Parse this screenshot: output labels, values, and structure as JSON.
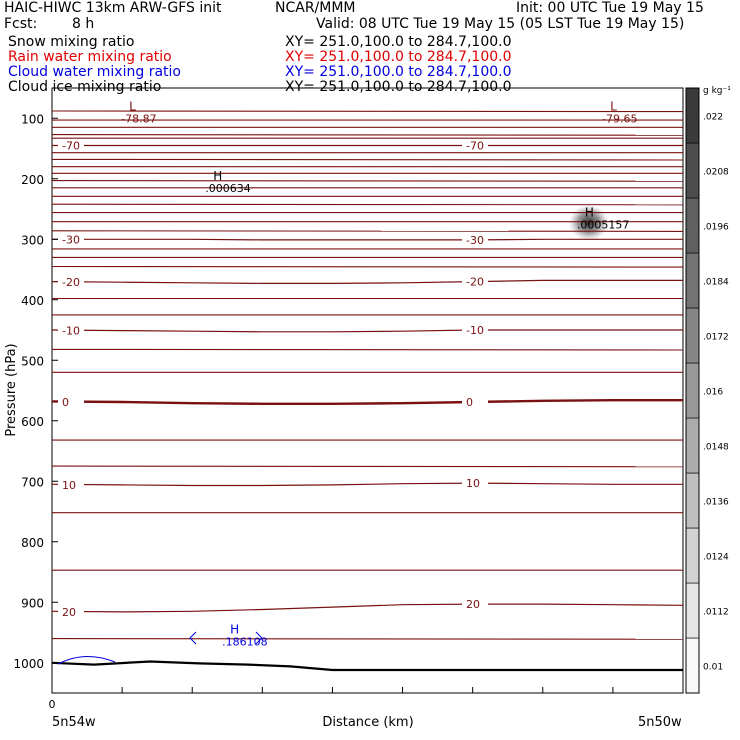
{
  "header": {
    "model": "HAIC-HIWC 13km ARW-GFS init",
    "org": "NCAR/MMM",
    "init": "Init: 00 UTC Tue 19 May 15",
    "fcst_label": "Fcst:",
    "fcst_value": "8 h",
    "valid": "Valid: 08 UTC Tue 19 May 15 (05 LST Tue 19 May 15)"
  },
  "fields": [
    {
      "name": "Snow mixing ratio",
      "xy": "XY= 251.0,100.0 to 284.7,100.0",
      "color": "#000000"
    },
    {
      "name": "Rain water mixing ratio",
      "xy": "XY= 251.0,100.0 to 284.7,100.0",
      "color": "#e00000"
    },
    {
      "name": "Cloud water mixing ratio",
      "xy": "XY= 251.0,100.0 to 284.7,100.0",
      "color": "#0000e0"
    },
    {
      "name": "Cloud ice mixing ratio",
      "xy": "XY= 251.0,100.0 to 284.7,100.0",
      "color": "#000000"
    }
  ],
  "chart_data": {
    "type": "cross-section contour",
    "xlabel": "Distance (km)",
    "ylabel": "Pressure (hPa)",
    "x_ticks": [
      {
        "x": 0,
        "label": "0"
      }
    ],
    "x_end_labels": [
      "5n54w",
      "5n50w"
    ],
    "x_range": [
      0,
      450
    ],
    "y_range": [
      1050,
      50
    ],
    "y_scale": "linear",
    "y_ticks": [
      100,
      200,
      300,
      400,
      500,
      600,
      700,
      800,
      900,
      1000
    ],
    "colorbar": {
      "unit": "g kg⁻¹",
      "ticks": [
        "0.01",
        ".0112",
        ".0124",
        ".0136",
        ".0148",
        ".016",
        ".0172",
        ".0184",
        ".0196",
        ".0208",
        ".022"
      ]
    },
    "temperature_contour_color": "#7a1010",
    "temperature_contours": [
      {
        "value": -70,
        "label": "-70",
        "p": [
          145,
          145,
          145,
          145,
          145,
          145,
          145,
          145,
          145,
          145
        ]
      },
      {
        "value": -30,
        "label": "-30",
        "p": [
          300,
          300,
          300,
          301,
          301,
          301,
          301,
          300,
          300,
          300
        ]
      },
      {
        "value": -20,
        "label": "-20",
        "p": [
          370,
          371,
          372,
          373,
          373,
          372,
          370,
          368,
          368,
          368
        ]
      },
      {
        "value": -10,
        "label": "-10",
        "p": [
          450,
          451,
          452,
          453,
          453,
          452,
          450,
          450,
          450,
          450
        ]
      },
      {
        "value": 0,
        "label": "0",
        "p": [
          568,
          569,
          571,
          572,
          572,
          571,
          569,
          567,
          566,
          566
        ]
      },
      {
        "value": 10,
        "label": "10",
        "p": [
          705,
          706,
          707,
          707,
          706,
          704,
          703,
          704,
          705,
          705
        ]
      },
      {
        "value": 20,
        "label": "20",
        "p": [
          915,
          916,
          915,
          912,
          908,
          904,
          903,
          903,
          904,
          905
        ]
      }
    ],
    "extrema": [
      {
        "kind": "L",
        "value": "-78.87",
        "x": 55,
        "p": 100,
        "color": "#7a1010"
      },
      {
        "kind": "L",
        "value": "-79.65",
        "x": 398,
        "p": 100,
        "color": "#7a1010"
      },
      {
        "kind": "H",
        "value": ".000634",
        "x": 115,
        "p": 215,
        "color": "#000000"
      },
      {
        "kind": "H",
        "value": ".0005157",
        "x": 380,
        "p": 276,
        "color": "#000000"
      },
      {
        "kind": "H",
        "value": ".186108",
        "x": 127,
        "p": 965,
        "color": "#0000e0"
      }
    ],
    "terrain": {
      "x": [
        0,
        30,
        70,
        105,
        140,
        170,
        200,
        240,
        300,
        360,
        420,
        450
      ],
      "p": [
        1000,
        1003,
        998,
        1001,
        1003,
        1006,
        1012,
        1012,
        1012,
        1012,
        1012,
        1012
      ]
    }
  }
}
